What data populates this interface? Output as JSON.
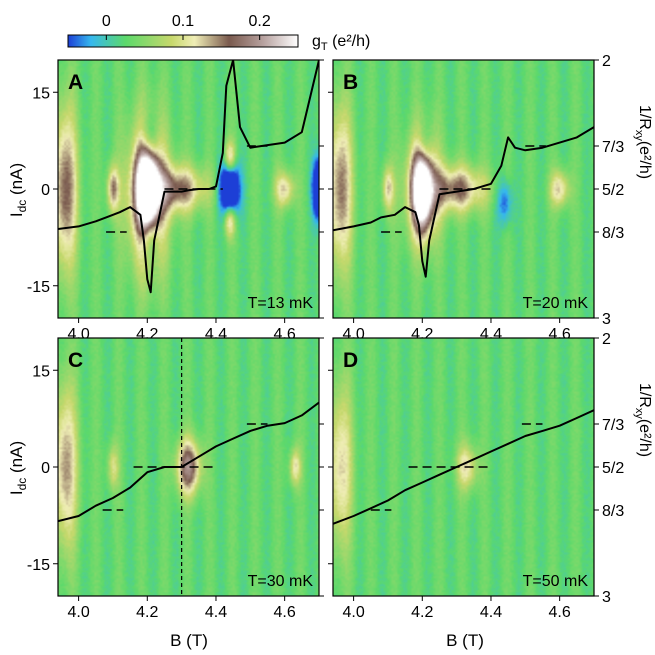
{
  "chart_data": {
    "type": "heatmap",
    "colorbar": {
      "label": "g",
      "label_sub": "T",
      "label_unit": " (e²/h)",
      "ticks": [
        {
          "value": 0,
          "label": "0"
        },
        {
          "value": 0.1,
          "label": "0.1"
        },
        {
          "value": 0.2,
          "label": "0.2"
        }
      ],
      "range": [
        -0.05,
        0.25
      ],
      "colors": [
        "#1d3fd6",
        "#36b8ee",
        "#5cd96b",
        "#c7d86c",
        "#f0eeb6",
        "#7a5a4e",
        "#b8a2a0",
        "#ffffff"
      ]
    },
    "x_axis": {
      "label": "B (T)",
      "range": [
        3.94,
        4.7
      ],
      "ticks": [
        {
          "value": 4.0,
          "label": "4.0"
        },
        {
          "value": 4.2,
          "label": "4.2"
        },
        {
          "value": 4.4,
          "label": "4.4"
        },
        {
          "value": 4.6,
          "label": "4.6"
        }
      ]
    },
    "y_axis_left": {
      "label": "I",
      "label_sub": "dc",
      "label_unit": " (nA)",
      "range": [
        -20,
        20
      ],
      "ticks": [
        {
          "value": 15,
          "label": "15"
        },
        {
          "value": 0,
          "label": "0"
        },
        {
          "value": -15,
          "label": "-15"
        }
      ]
    },
    "y_axis_right": {
      "label": "1/R",
      "label_sub": "xy",
      "label_unit": "(e²/h)",
      "range_top_to_bottom": [
        2,
        3
      ],
      "ticks": [
        {
          "value": 2.0,
          "label": "2"
        },
        {
          "value": 2.3333,
          "label": "7/3"
        },
        {
          "value": 2.5,
          "label": "5/2"
        },
        {
          "value": 2.6667,
          "label": "8/3"
        },
        {
          "value": 3.0,
          "label": "3"
        }
      ]
    },
    "panels": [
      {
        "id": "A",
        "letter": "A",
        "temperature_label": "T=13 mK",
        "curve": {
          "x": [
            3.94,
            4.0,
            4.05,
            4.08,
            4.12,
            4.15,
            4.18,
            4.19,
            4.2,
            4.21,
            4.22,
            4.25,
            4.3,
            4.32,
            4.35,
            4.38,
            4.4,
            4.42,
            4.43,
            4.45,
            4.47,
            4.5,
            4.55,
            4.6,
            4.65,
            4.7
          ],
          "y": [
            2.655,
            2.645,
            2.625,
            2.61,
            2.59,
            2.57,
            2.6,
            2.7,
            2.85,
            2.9,
            2.7,
            2.51,
            2.51,
            2.505,
            2.5,
            2.5,
            2.49,
            2.36,
            2.1,
            2.0,
            2.26,
            2.34,
            2.33,
            2.32,
            2.28,
            2.0
          ]
        },
        "plateaus": [
          {
            "x": [
              4.08,
              4.14
            ],
            "y": 2.6667
          },
          {
            "x": [
              4.25,
              4.42
            ],
            "y": 2.5
          },
          {
            "x": [
              4.49,
              4.55
            ],
            "y": 2.3333
          }
        ],
        "features": [
          {
            "b": 3.96,
            "i": 0,
            "sb": 0.025,
            "si": 9,
            "amp": 0.14
          },
          {
            "b": 4.1,
            "i": 0,
            "sb": 0.012,
            "si": 2.5,
            "amp": 0.12
          },
          {
            "b": 4.2,
            "i": -1,
            "sb": 0.04,
            "si": 8,
            "amp": 0.16
          },
          {
            "b": 4.2,
            "i": 0,
            "sb": 0.02,
            "si": 4.5,
            "amp": 0.3
          },
          {
            "b": 4.205,
            "i": 7,
            "sb": 0.018,
            "si": 3,
            "amp": -0.11
          },
          {
            "b": 4.205,
            "i": -7,
            "sb": 0.018,
            "si": 3,
            "amp": -0.11
          },
          {
            "b": 4.285,
            "i": 0,
            "sb": 0.06,
            "si": 2.5,
            "amp": 0.13
          },
          {
            "b": 4.44,
            "i": 0,
            "sb": 0.018,
            "si": 3,
            "amp": -0.25
          },
          {
            "b": 4.44,
            "i": 4.5,
            "sb": 0.012,
            "si": 2,
            "amp": 0.14
          },
          {
            "b": 4.44,
            "i": -4.5,
            "sb": 0.012,
            "si": 2,
            "amp": 0.14
          },
          {
            "b": 4.6,
            "i": 0,
            "sb": 0.02,
            "si": 2,
            "amp": 0.1
          },
          {
            "b": 4.7,
            "i": 0,
            "sb": 0.012,
            "si": 3,
            "amp": -0.22
          }
        ]
      },
      {
        "id": "B",
        "letter": "B",
        "temperature_label": "T=20 mK",
        "curve": {
          "x": [
            3.94,
            4.0,
            4.05,
            4.08,
            4.12,
            4.15,
            4.18,
            4.19,
            4.2,
            4.21,
            4.22,
            4.25,
            4.3,
            4.35,
            4.4,
            4.43,
            4.45,
            4.47,
            4.5,
            4.55,
            4.6,
            4.65,
            4.7
          ],
          "y": [
            2.66,
            2.645,
            2.63,
            2.61,
            2.6,
            2.57,
            2.59,
            2.64,
            2.78,
            2.84,
            2.7,
            2.52,
            2.51,
            2.5,
            2.48,
            2.41,
            2.3,
            2.34,
            2.35,
            2.34,
            2.32,
            2.3,
            2.26
          ]
        },
        "plateaus": [
          {
            "x": [
              4.08,
              4.14
            ],
            "y": 2.6667
          },
          {
            "x": [
              4.25,
              4.4
            ],
            "y": 2.5
          },
          {
            "x": [
              4.5,
              4.56
            ],
            "y": 2.3333
          }
        ],
        "features": [
          {
            "b": 3.96,
            "i": 0,
            "sb": 0.025,
            "si": 9,
            "amp": 0.13
          },
          {
            "b": 4.1,
            "i": 0,
            "sb": 0.012,
            "si": 2.5,
            "amp": 0.1
          },
          {
            "b": 4.2,
            "i": 0,
            "sb": 0.035,
            "si": 6,
            "amp": 0.13
          },
          {
            "b": 4.2,
            "i": 0,
            "sb": 0.018,
            "si": 4,
            "amp": 0.25
          },
          {
            "b": 4.205,
            "i": 6,
            "sb": 0.015,
            "si": 2.5,
            "amp": -0.07
          },
          {
            "b": 4.3,
            "i": 0,
            "sb": 0.06,
            "si": 2.5,
            "amp": 0.13
          },
          {
            "b": 4.44,
            "i": -2,
            "sb": 0.015,
            "si": 2.5,
            "amp": -0.08
          },
          {
            "b": 4.6,
            "i": 0,
            "sb": 0.02,
            "si": 2,
            "amp": 0.1
          }
        ]
      },
      {
        "id": "C",
        "letter": "C",
        "temperature_label": "T=30 mK",
        "curve": {
          "x": [
            3.94,
            4.0,
            4.05,
            4.1,
            4.15,
            4.2,
            4.25,
            4.3,
            4.35,
            4.4,
            4.45,
            4.5,
            4.55,
            4.6,
            4.65,
            4.7
          ],
          "y": [
            2.71,
            2.69,
            2.65,
            2.62,
            2.58,
            2.52,
            2.5,
            2.5,
            2.46,
            2.42,
            2.39,
            2.36,
            2.34,
            2.33,
            2.3,
            2.25
          ]
        },
        "plateaus": [
          {
            "x": [
              4.07,
              4.13
            ],
            "y": 2.6667
          },
          {
            "x": [
              4.16,
              4.4
            ],
            "y": 2.5
          },
          {
            "x": [
              4.49,
              4.55
            ],
            "y": 2.3333
          }
        ],
        "features": [
          {
            "b": 3.96,
            "i": 0,
            "sb": 0.025,
            "si": 9,
            "amp": 0.12
          },
          {
            "b": 4.1,
            "i": 0,
            "sb": 0.012,
            "si": 2.5,
            "amp": 0.07
          },
          {
            "b": 4.32,
            "i": 0,
            "sb": 0.025,
            "si": 3,
            "amp": 0.16
          },
          {
            "b": 4.63,
            "i": 0,
            "sb": 0.012,
            "si": 2,
            "amp": 0.09
          }
        ],
        "vline_x": 4.3
      },
      {
        "id": "D",
        "letter": "D",
        "temperature_label": "T=50 mK",
        "curve": {
          "x": [
            3.94,
            4.0,
            4.05,
            4.1,
            4.15,
            4.2,
            4.25,
            4.3,
            4.35,
            4.4,
            4.45,
            4.5,
            4.55,
            4.6,
            4.65,
            4.7
          ],
          "y": [
            2.72,
            2.69,
            2.66,
            2.63,
            2.59,
            2.56,
            2.53,
            2.5,
            2.47,
            2.44,
            2.41,
            2.38,
            2.36,
            2.34,
            2.31,
            2.28
          ]
        },
        "plateaus": [
          {
            "x": [
              4.05,
              4.11
            ],
            "y": 2.6667
          },
          {
            "x": [
              4.16,
              4.4
            ],
            "y": 2.5
          },
          {
            "x": [
              4.49,
              4.55
            ],
            "y": 2.3333
          }
        ],
        "features": [
          {
            "b": 3.96,
            "i": 0,
            "sb": 0.025,
            "si": 9,
            "amp": 0.1
          },
          {
            "b": 4.33,
            "i": 0,
            "sb": 0.022,
            "si": 2.5,
            "amp": 0.09
          }
        ]
      }
    ]
  }
}
